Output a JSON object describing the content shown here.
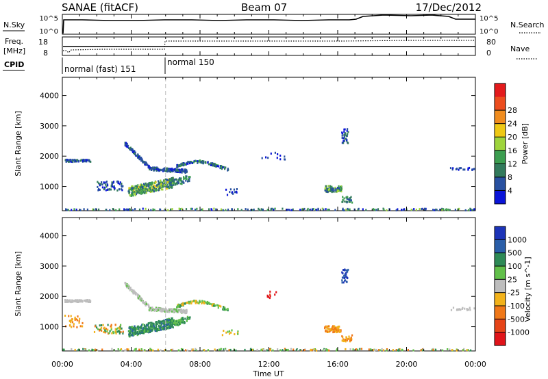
{
  "header": {
    "title": "SANAE (fitACF)",
    "beam": "Beam 07",
    "date": "17/Dec/2012"
  },
  "top_panels": {
    "nsky": {
      "label": "N.Sky",
      "tick_top": "10^5",
      "tick_bottom": "10^0",
      "right_label": "N.Search",
      "right_tick_top": "10^5",
      "right_tick_bottom": "10^0"
    },
    "freq": {
      "label_line1": "Freq.",
      "label_line2": "[MHz]",
      "tick_top": "18",
      "tick_bottom": "8",
      "right_label": "Nave",
      "right_tick_top": "80",
      "right_tick_bottom": "0"
    },
    "cpid": {
      "label": "CPID",
      "modes": [
        "normal (fast) 151",
        "normal 150"
      ]
    }
  },
  "time_axis": {
    "label": "Time UT",
    "ticks": [
      "00:00",
      "04:00",
      "08:00",
      "12:00",
      "16:00",
      "20:00",
      "00:00"
    ]
  },
  "chart_data": [
    {
      "type": "heatmap",
      "name": "power",
      "ylabel": "Slant Range [km]",
      "yticks": [
        1000,
        2000,
        3000,
        4000
      ],
      "ylim": [
        200,
        4600
      ],
      "xlim_hours": [
        0,
        24
      ],
      "colorbar": {
        "label": "Power [dB]",
        "ticks": [
          "4",
          "8",
          "12",
          "16",
          "20",
          "24",
          "28"
        ]
      },
      "colors": [
        "#0a14d8",
        "#2850a0",
        "#327a5c",
        "#3c9e50",
        "#9ed43c",
        "#eec814",
        "#f08c1e",
        "#ec4c1e",
        "#e31a1c"
      ]
    },
    {
      "type": "heatmap",
      "name": "velocity",
      "ylabel": "Slant Range [km]",
      "yticks": [
        1000,
        2000,
        3000,
        4000
      ],
      "ylim": [
        200,
        4600
      ],
      "xlim_hours": [
        0,
        24
      ],
      "colorbar": {
        "label": "Velocity [m s^-1]",
        "ticks": [
          "1000",
          "500",
          "100",
          "25",
          "-25",
          "-100",
          "-500",
          "-1000"
        ]
      },
      "colors": [
        "#1c34b8",
        "#2a5ea8",
        "#2e8a56",
        "#62c04a",
        "#bdbdbd",
        "#f2b21a",
        "#f07818",
        "#e64418",
        "#e0141a"
      ]
    }
  ]
}
